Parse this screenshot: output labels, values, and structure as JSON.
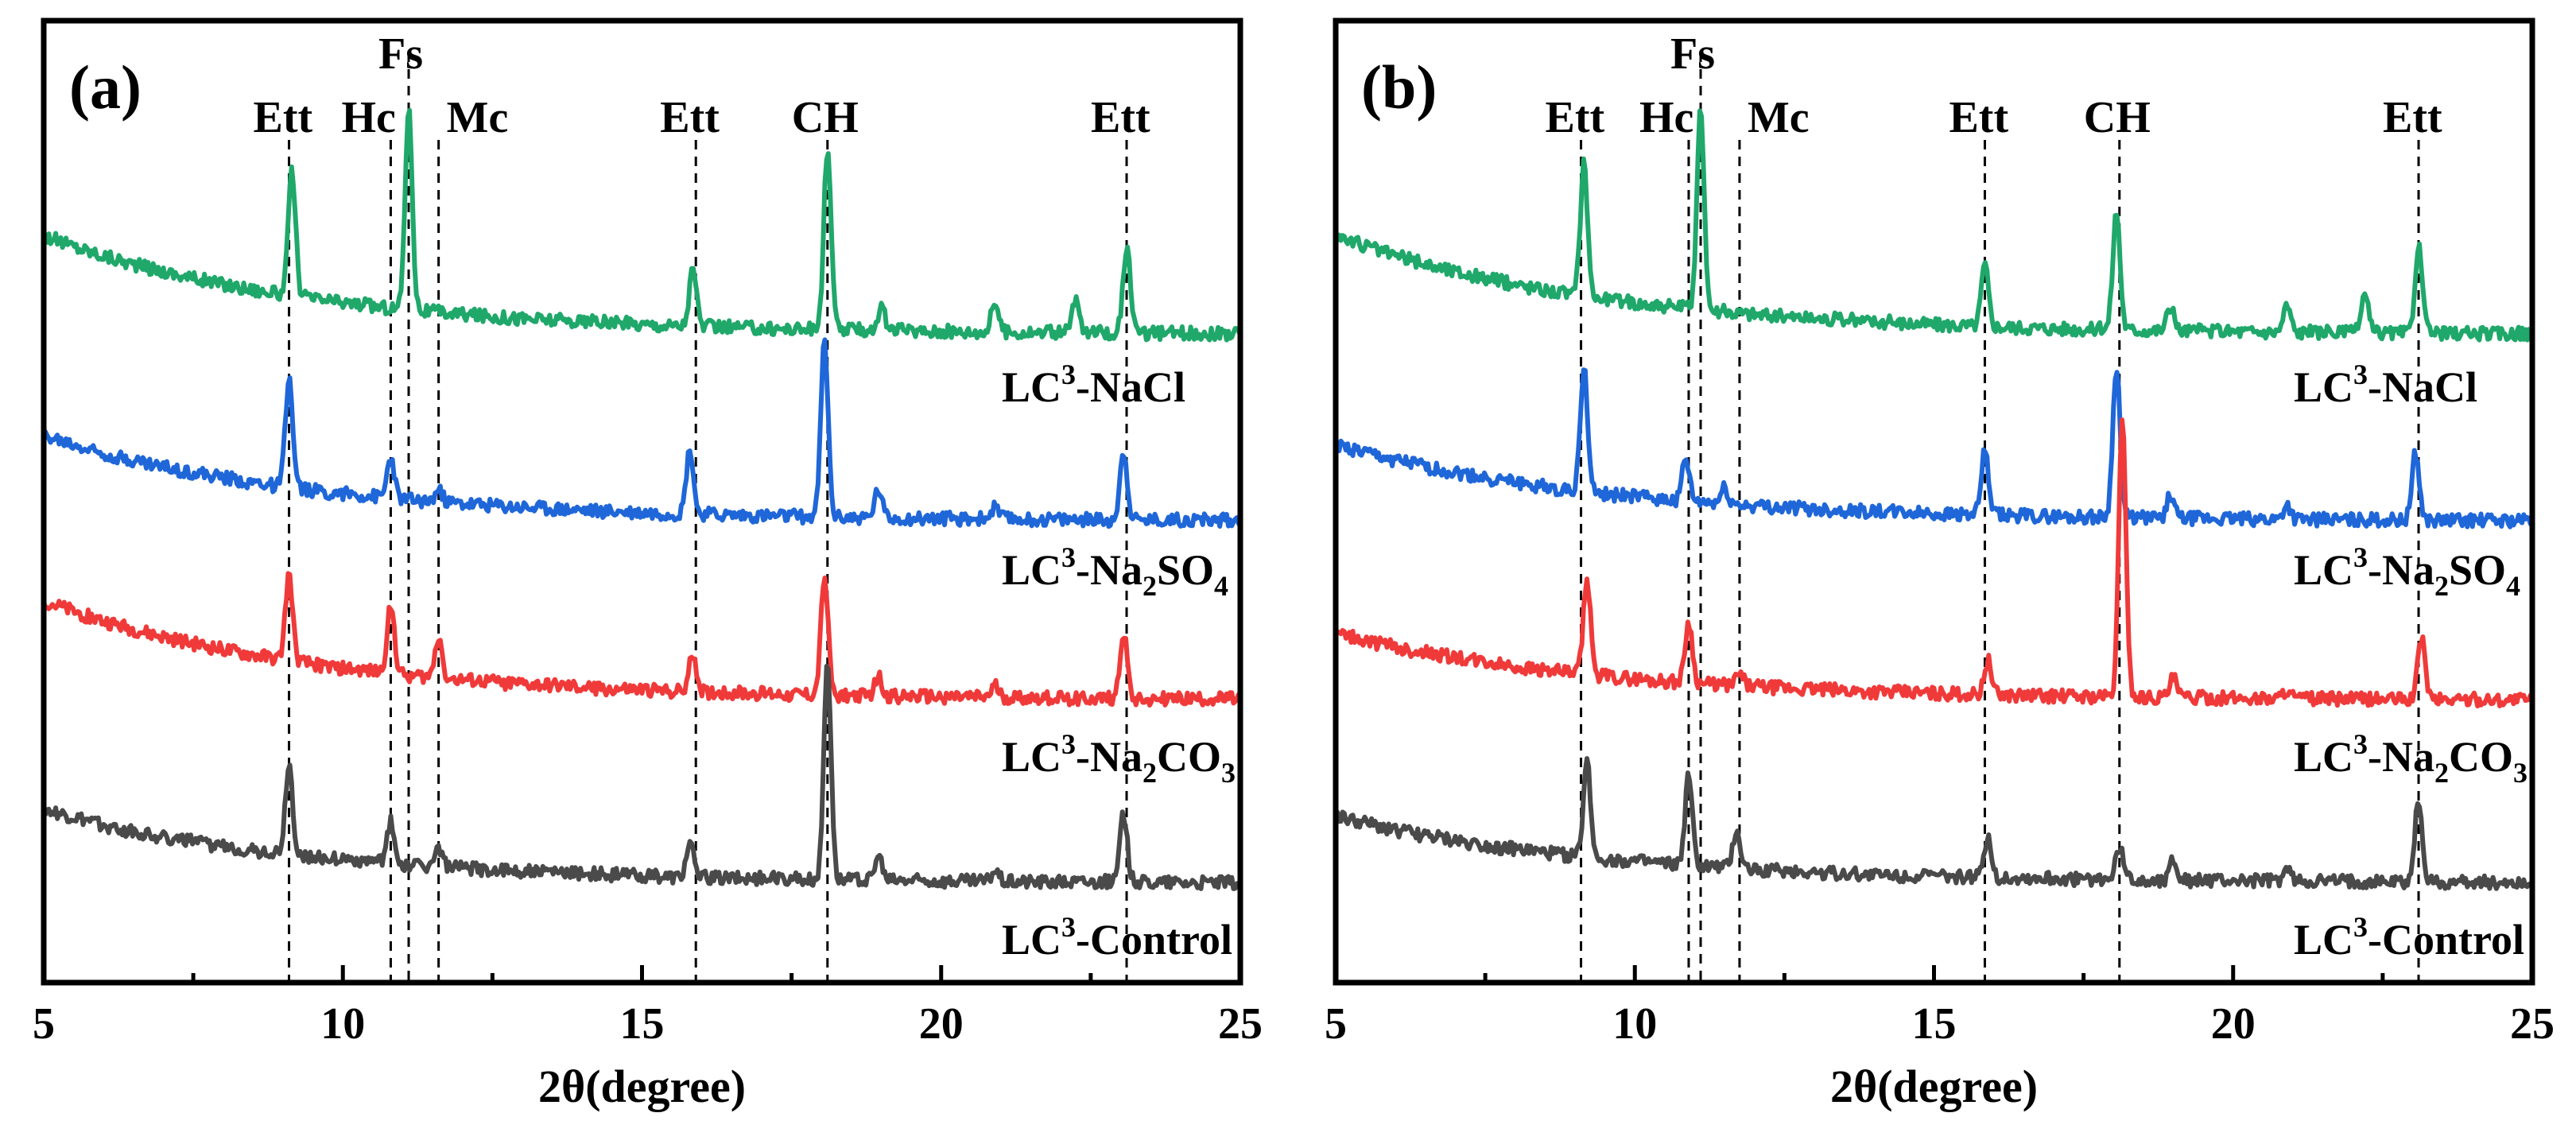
{
  "chart_data": [
    {
      "type": "line",
      "panel_label": "(a)",
      "xlabel": "2θ(degree)",
      "ylabel": "",
      "xlim": [
        5,
        25
      ],
      "xticks": [
        "5",
        "10",
        "15",
        "20",
        "25"
      ],
      "phase_markers": [
        {
          "label": "Ett",
          "x": 9.1
        },
        {
          "label": "Fs",
          "x": 11.1
        },
        {
          "label": "Hc",
          "x": 10.8
        },
        {
          "label": "Mc",
          "x": 11.6
        },
        {
          "label": "Ett",
          "x": 15.9
        },
        {
          "label": "CH",
          "x": 18.1
        },
        {
          "label": "Ett",
          "x": 23.1
        }
      ],
      "series": [
        {
          "name": "LC³-NaCl",
          "label_base": "LC",
          "label_sup": "3",
          "label_rest": "-NaCl",
          "color": "#1fa86a",
          "offset": 3,
          "baseline": [
            0.62,
            0.1
          ],
          "peaks": [
            [
              9.15,
              0.65
            ],
            [
              11.1,
              1.05
            ],
            [
              15.85,
              0.3
            ],
            [
              18.1,
              0.95
            ],
            [
              19.0,
              0.12
            ],
            [
              20.9,
              0.16
            ],
            [
              22.25,
              0.17
            ],
            [
              23.1,
              0.45
            ]
          ]
        },
        {
          "name": "LC³-Na₂SO₄",
          "label_base": "LC",
          "label_sup": "3",
          "label_rest": "-Na",
          "label_sub": "2",
          "label_rest2": "SO",
          "label_sub2": "4",
          "color": "#1f67d9",
          "offset": 2,
          "baseline": [
            0.55,
            0.1
          ],
          "peaks": [
            [
              9.1,
              0.57
            ],
            [
              10.8,
              0.22
            ],
            [
              11.6,
              0.06
            ],
            [
              15.8,
              0.34
            ],
            [
              18.05,
              0.92
            ],
            [
              18.95,
              0.15
            ],
            [
              20.9,
              0.06
            ],
            [
              23.05,
              0.36
            ]
          ]
        },
        {
          "name": "LC³-Na₂CO₃",
          "label_base": "LC",
          "label_sup": "3",
          "label_rest": "-Na",
          "label_sub": "2",
          "label_rest2": "CO",
          "label_sub2": "3",
          "color": "#f03a3a",
          "offset": 1,
          "baseline": [
            0.62,
            0.1
          ],
          "peaks": [
            [
              9.1,
              0.45
            ],
            [
              10.8,
              0.37
            ],
            [
              11.6,
              0.22
            ],
            [
              15.85,
              0.2
            ],
            [
              18.05,
              0.62
            ],
            [
              18.95,
              0.1
            ],
            [
              20.9,
              0.06
            ],
            [
              23.05,
              0.35
            ]
          ]
        },
        {
          "name": "LC³-Control",
          "label_base": "LC",
          "label_sup": "3",
          "label_rest": "-Control",
          "color": "#4a4a4a",
          "offset": 0,
          "baseline": [
            0.48,
            0.1
          ],
          "peaks": [
            [
              9.1,
              0.47
            ],
            [
              10.8,
              0.22
            ],
            [
              11.6,
              0.1
            ],
            [
              15.8,
              0.18
            ],
            [
              18.1,
              1.15
            ],
            [
              18.95,
              0.12
            ],
            [
              20.9,
              0.06
            ],
            [
              23.05,
              0.36
            ]
          ]
        }
      ]
    },
    {
      "type": "line",
      "panel_label": "(b)",
      "xlabel": "2θ(degree)",
      "ylabel": "",
      "xlim": [
        5,
        25
      ],
      "xticks": [
        "5",
        "10",
        "15",
        "20",
        "25"
      ],
      "phase_markers": [
        {
          "label": "Ett",
          "x": 9.1
        },
        {
          "label": "Fs",
          "x": 11.1
        },
        {
          "label": "Hc",
          "x": 10.9
        },
        {
          "label": "Mc",
          "x": 11.75
        },
        {
          "label": "Ett",
          "x": 15.85
        },
        {
          "label": "CH",
          "x": 18.1
        },
        {
          "label": "Ett",
          "x": 23.1
        }
      ],
      "series": [
        {
          "name": "LC³-NaCl",
          "label_base": "LC",
          "label_sup": "3",
          "label_rest": "-NaCl",
          "color": "#1fa86a",
          "offset": 3,
          "baseline": [
            0.62,
            0.1
          ],
          "peaks": [
            [
              9.15,
              0.7
            ],
            [
              11.1,
              1.05
            ],
            [
              15.85,
              0.32
            ],
            [
              18.05,
              0.62
            ],
            [
              18.95,
              0.12
            ],
            [
              20.9,
              0.14
            ],
            [
              22.2,
              0.2
            ],
            [
              23.1,
              0.46
            ]
          ]
        },
        {
          "name": "LC³-Na₂SO₄",
          "label_base": "LC",
          "label_sup": "3",
          "label_rest": "-Na",
          "label_sub": "2",
          "label_rest2": "SO",
          "label_sub2": "4",
          "color": "#1f67d9",
          "offset": 2,
          "baseline": [
            0.5,
            0.1
          ],
          "peaks": [
            [
              9.15,
              0.65
            ],
            [
              10.85,
              0.22
            ],
            [
              11.5,
              0.08
            ],
            [
              15.85,
              0.33
            ],
            [
              18.05,
              0.8
            ],
            [
              18.95,
              0.12
            ],
            [
              20.9,
              0.08
            ],
            [
              23.05,
              0.36
            ]
          ]
        },
        {
          "name": "LC³-Na₂CO₃",
          "label_base": "LC",
          "label_sup": "3",
          "label_rest": "-Na",
          "label_sub": "2",
          "label_rest2": "CO",
          "label_sub2": "3",
          "color": "#f03a3a",
          "offset": 1,
          "baseline": [
            0.45,
            0.1
          ],
          "peaks": [
            [
              9.2,
              0.5
            ],
            [
              10.9,
              0.32
            ],
            [
              11.75,
              0.06
            ],
            [
              15.9,
              0.18
            ],
            [
              18.15,
              1.45
            ],
            [
              19.0,
              0.1
            ],
            [
              20.9,
              0.05
            ],
            [
              23.15,
              0.33
            ]
          ]
        },
        {
          "name": "LC³-Control",
          "label_base": "LC",
          "label_sup": "3",
          "label_rest": "-Control",
          "color": "#4a4a4a",
          "offset": 0,
          "baseline": [
            0.45,
            0.1
          ],
          "peaks": [
            [
              9.2,
              0.5
            ],
            [
              10.9,
              0.47
            ],
            [
              11.7,
              0.2
            ],
            [
              15.9,
              0.22
            ],
            [
              18.1,
              0.18
            ],
            [
              19.0,
              0.12
            ],
            [
              20.9,
              0.06
            ],
            [
              23.1,
              0.44
            ]
          ]
        }
      ]
    }
  ]
}
